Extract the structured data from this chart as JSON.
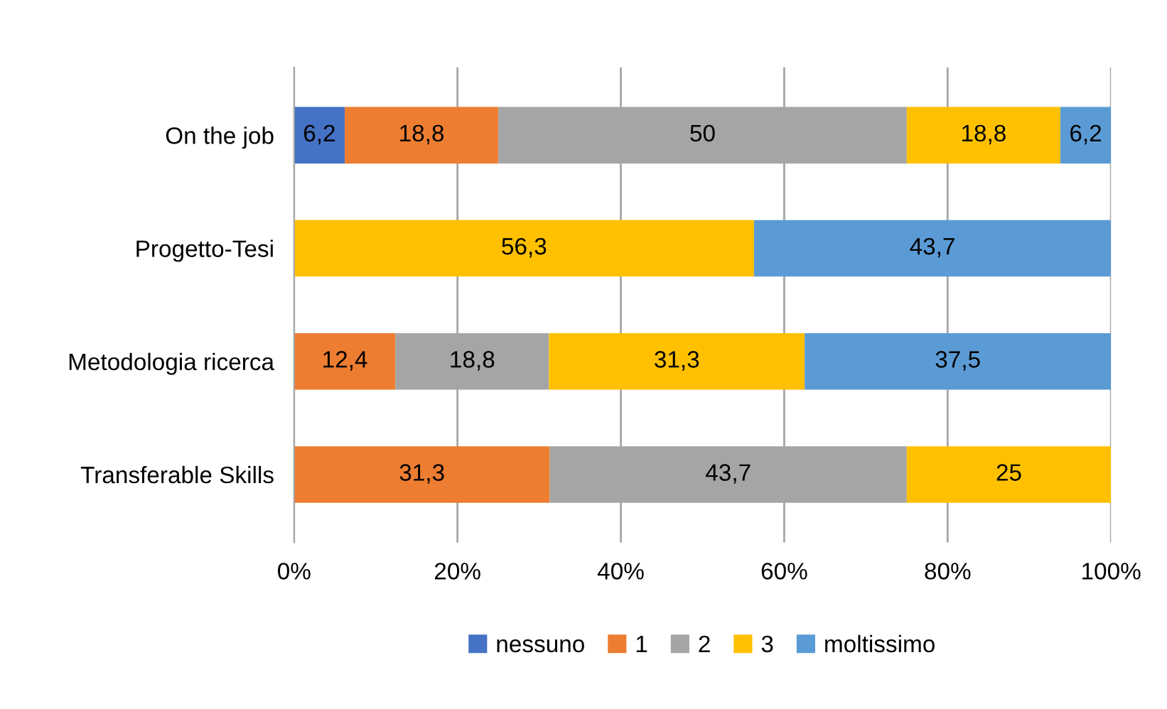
{
  "chart_data": {
    "type": "bar",
    "orientation": "horizontal",
    "stacked": true,
    "categories": [
      "On the job",
      "Progetto-Tesi",
      "Metodologia ricerca",
      "Transferable Skills"
    ],
    "series": [
      {
        "name": "nessuno",
        "color": "#4472c4",
        "values": [
          6.2,
          null,
          null,
          null
        ],
        "value_labels": [
          "6,2",
          null,
          null,
          null
        ]
      },
      {
        "name": "1",
        "color": "#ed7d31",
        "values": [
          18.8,
          null,
          12.4,
          31.3
        ],
        "value_labels": [
          "18,8",
          null,
          "12,4",
          "31,3"
        ]
      },
      {
        "name": "2",
        "color": "#a5a5a5",
        "values": [
          50,
          null,
          18.8,
          43.7
        ],
        "value_labels": [
          "50",
          null,
          "18,8",
          "43,7"
        ]
      },
      {
        "name": "3",
        "color": "#ffc000",
        "values": [
          18.8,
          56.3,
          31.3,
          25
        ],
        "value_labels": [
          "18,8",
          "56,3",
          "31,3",
          "25"
        ]
      },
      {
        "name": "moltissimo",
        "color": "#5b9bd5",
        "values": [
          6.2,
          43.7,
          37.5,
          null
        ],
        "value_labels": [
          "6,2",
          "43,7",
          "37,5",
          null
        ]
      }
    ],
    "xlim": [
      0,
      100
    ],
    "xticks": [
      {
        "value": 0,
        "label": "0%"
      },
      {
        "value": 20,
        "label": "20%"
      },
      {
        "value": 40,
        "label": "40%"
      },
      {
        "value": 60,
        "label": "60%"
      },
      {
        "value": 80,
        "label": "80%"
      },
      {
        "value": 100,
        "label": "100%"
      }
    ],
    "grid": "x",
    "legend": "bottom"
  }
}
